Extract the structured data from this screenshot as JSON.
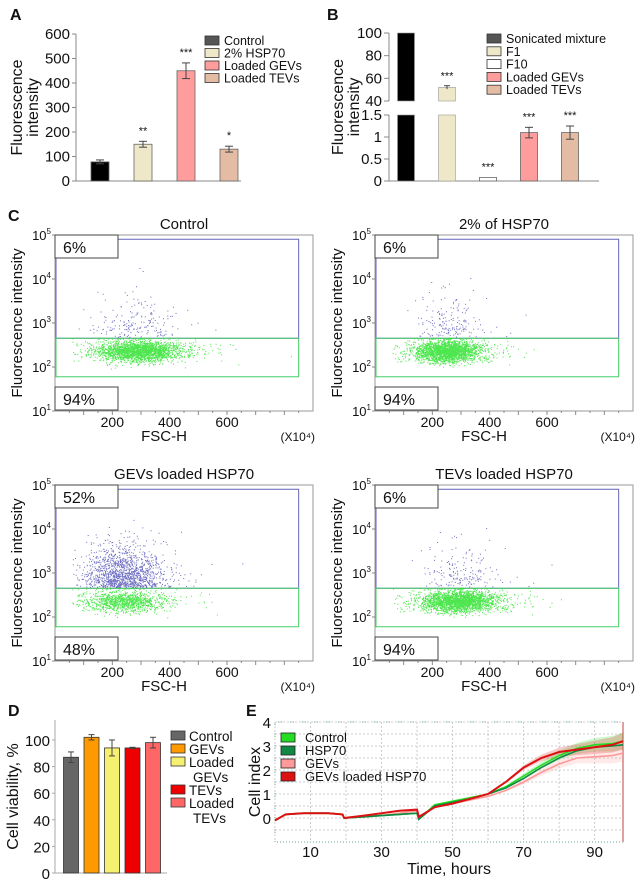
{
  "figure": {
    "panel_labels": [
      "A",
      "B",
      "C",
      "D",
      "E"
    ]
  },
  "chart_data": [
    {
      "panel": "A",
      "type": "bar",
      "title": "",
      "xlabel": "",
      "ylabel": "Fluorescence intensity",
      "ylim": [
        0,
        600
      ],
      "yticks": [
        0,
        100,
        200,
        300,
        400,
        500,
        600
      ],
      "categories": [
        "Control",
        "2% HSP70",
        "Loaded GEVs",
        "Loaded TEVs"
      ],
      "values": [
        78,
        150,
        450,
        130
      ],
      "errors": [
        8,
        12,
        32,
        12
      ],
      "significance": [
        "",
        "**",
        "***",
        "*"
      ],
      "colors": [
        "#000000",
        "#efe8c8",
        "#ff9c9c",
        "#e4bca4"
      ],
      "legend": {
        "position": "top-right",
        "entries": [
          "Control",
          "2% HSP70",
          "Loaded GEVs",
          "Loaded TEVs"
        ],
        "colors": [
          "#555555",
          "#efe8c8",
          "#ff9c9c",
          "#e4bca4"
        ]
      }
    },
    {
      "panel": "B",
      "type": "bar",
      "title": "",
      "xlabel": "",
      "ylabel": "Fluorescence intensity",
      "broken_axis": true,
      "ylim_upper": [
        40,
        100
      ],
      "yticks_upper": [
        40,
        60,
        80,
        100
      ],
      "ylim_lower": [
        0,
        1.5
      ],
      "yticks_lower": [
        0,
        0.5,
        1,
        1.5
      ],
      "yticklabels_lower": [
        "0",
        "0.5",
        "1",
        "1.5"
      ],
      "categories": [
        "Sonicated mixture",
        "F1",
        "F10",
        "Loaded GEVs",
        "Loaded TEVs"
      ],
      "values": [
        100,
        52,
        0.08,
        1.1,
        1.1
      ],
      "errors": [
        0,
        1.5,
        0,
        0.12,
        0.15
      ],
      "significance": [
        "",
        "***",
        "***",
        "***",
        "***"
      ],
      "colors": [
        "#000000",
        "#efe8c8",
        "#ffffff",
        "#ff9c9c",
        "#e4bca4"
      ],
      "legend": {
        "position": "top-right",
        "entries": [
          "Sonicated mixture",
          "F1",
          "F10",
          "Loaded GEVs",
          "Loaded TEVs"
        ],
        "colors": [
          "#555555",
          "#efe8c8",
          "#ffffff",
          "#ff9c9c",
          "#e4bca4"
        ]
      }
    },
    {
      "panel": "C",
      "type": "scatter",
      "subplots": [
        {
          "title": "Control",
          "upper_gate_pct": "6%",
          "lower_gate_pct": "94%",
          "cluster_center_x": 290,
          "cluster_spread_x": 70,
          "high_fraction": 0.06
        },
        {
          "title": "2% of HSP70",
          "upper_gate_pct": "6%",
          "lower_gate_pct": "94%",
          "cluster_center_x": 250,
          "cluster_spread_x": 55,
          "high_fraction": 0.06
        },
        {
          "title": "GEVs loaded HSP70",
          "upper_gate_pct": "52%",
          "lower_gate_pct": "48%",
          "cluster_center_x": 240,
          "cluster_spread_x": 65,
          "high_fraction": 0.52
        },
        {
          "title": "TEVs loaded HSP70",
          "upper_gate_pct": "6%",
          "lower_gate_pct": "94%",
          "cluster_center_x": 290,
          "cluster_spread_x": 65,
          "high_fraction": 0.06
        }
      ],
      "xlabel": "FSC-H",
      "x_unit": "(X10⁴)",
      "xticks": [
        200,
        400,
        600
      ],
      "xlim": [
        0,
        900
      ],
      "ylabel": "Fluorescence intensity",
      "ylim_log": [
        10,
        100000
      ],
      "yticklabels": [
        "10¹",
        "10²",
        "10³",
        "10⁴",
        "10⁵"
      ],
      "gate_threshold": 450,
      "colors": {
        "low": "#22e022",
        "high": "#3333aa",
        "upper_gate": "#6666bb",
        "lower_gate": "#44cc66"
      }
    },
    {
      "panel": "D",
      "type": "bar",
      "title": "",
      "xlabel": "",
      "ylabel": "Cell viability, %",
      "ylim": [
        0,
        115
      ],
      "yticks": [
        0,
        20,
        40,
        60,
        80,
        100
      ],
      "categories": [
        "Control",
        "GEVs",
        "Loaded GEVs",
        "TEVs",
        "Loaded TEVs"
      ],
      "values": [
        87,
        102,
        94,
        94,
        98
      ],
      "errors": [
        4,
        2,
        6,
        0.5,
        4
      ],
      "colors": [
        "#666666",
        "#ff9900",
        "#f6f070",
        "#ee0000",
        "#ff6666"
      ],
      "legend": {
        "position": "right",
        "entries": [
          "Control",
          "GEVs",
          "Loaded\nGEVs",
          "TEVs",
          "Loaded\nTEVs"
        ]
      }
    },
    {
      "panel": "E",
      "type": "line",
      "title": "",
      "xlabel": "Time, hours",
      "ylabel": "Cell index",
      "xlim": [
        0,
        98
      ],
      "ylim": [
        -1,
        4
      ],
      "xticks": [
        10,
        30,
        50,
        70,
        90
      ],
      "yticks": [
        0,
        1,
        2,
        3,
        4
      ],
      "grid": true,
      "legend": {
        "position": "top-left",
        "entries": [
          "Control",
          "HSP70",
          "GEVs",
          "GEVs loaded HSP70"
        ]
      },
      "series": [
        {
          "name": "Control",
          "color": "#22dd22",
          "x": [
            0,
            3,
            8,
            15,
            19,
            19.5,
            25,
            30,
            35,
            40,
            40.5,
            45,
            50,
            55,
            60,
            65,
            70,
            75,
            80,
            85,
            90,
            95,
            98
          ],
          "y": [
            -0.1,
            0.15,
            0.2,
            0.2,
            0.15,
            0,
            0.05,
            0.1,
            0.15,
            0.2,
            -0.05,
            0.55,
            0.7,
            0.85,
            1.0,
            1.3,
            1.75,
            2.2,
            2.6,
            2.9,
            3.05,
            3.1,
            3.2
          ]
        },
        {
          "name": "HSP70",
          "color": "#118844",
          "x": [
            0,
            3,
            8,
            15,
            19,
            19.5,
            25,
            30,
            35,
            40,
            40.5,
            45,
            50,
            55,
            60,
            65,
            70,
            75,
            80,
            85,
            90,
            95,
            98
          ],
          "y": [
            -0.1,
            0.15,
            0.2,
            0.2,
            0.15,
            0,
            0.05,
            0.1,
            0.15,
            0.2,
            -0.05,
            0.5,
            0.65,
            0.8,
            1.0,
            1.25,
            1.65,
            2.1,
            2.5,
            2.8,
            2.95,
            3.0,
            3.05
          ]
        },
        {
          "name": "GEVs",
          "color": "#ff9999",
          "x": [
            0,
            3,
            8,
            15,
            19,
            19.5,
            25,
            30,
            35,
            40,
            40.5,
            45,
            50,
            55,
            60,
            65,
            70,
            75,
            80,
            85,
            90,
            95,
            98
          ],
          "y": [
            -0.1,
            0.15,
            0.2,
            0.2,
            0.15,
            0,
            0.05,
            0.1,
            0.2,
            0.3,
            0,
            0.45,
            0.6,
            0.75,
            0.9,
            1.15,
            1.5,
            1.9,
            2.25,
            2.5,
            2.55,
            2.6,
            2.7
          ]
        },
        {
          "name": "GEVs loaded HSP70",
          "color": "#dd1111",
          "x": [
            0,
            3,
            8,
            15,
            19,
            19.5,
            25,
            30,
            35,
            40,
            40.5,
            45,
            50,
            55,
            60,
            65,
            70,
            75,
            80,
            85,
            90,
            95,
            98
          ],
          "y": [
            -0.1,
            0.15,
            0.2,
            0.2,
            0.15,
            0,
            0.1,
            0.2,
            0.3,
            0.35,
            0.05,
            0.45,
            0.6,
            0.8,
            1.0,
            1.5,
            2.1,
            2.5,
            2.75,
            2.85,
            2.95,
            3.05,
            3.2
          ]
        }
      ]
    }
  ]
}
